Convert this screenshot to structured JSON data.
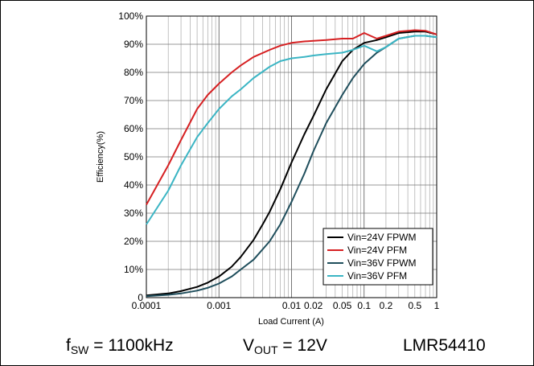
{
  "chart_data": {
    "type": "line",
    "title": "",
    "xlabel": "Load Current (A)",
    "ylabel": "Efficiency(%)",
    "x_scale": "log",
    "xlim": [
      0.0001,
      1
    ],
    "ylim": [
      0,
      100
    ],
    "grid": true,
    "legend_position": "bottom-right",
    "x_ticks": [
      {
        "value": 0.0001,
        "label": "0.0001"
      },
      {
        "value": 0.001,
        "label": "0.001"
      },
      {
        "value": 0.01,
        "label": "0.01"
      },
      {
        "value": 0.02,
        "label": "0.02"
      },
      {
        "value": 0.05,
        "label": "0.05"
      },
      {
        "value": 0.1,
        "label": "0.1"
      },
      {
        "value": 0.2,
        "label": "0.2"
      },
      {
        "value": 0.5,
        "label": "0.5"
      },
      {
        "value": 1,
        "label": "1"
      }
    ],
    "y_ticks": [
      {
        "value": 0,
        "label": "0"
      },
      {
        "value": 10,
        "label": "10%"
      },
      {
        "value": 20,
        "label": "20%"
      },
      {
        "value": 30,
        "label": "30%"
      },
      {
        "value": 40,
        "label": "40%"
      },
      {
        "value": 50,
        "label": "50%"
      },
      {
        "value": 60,
        "label": "60%"
      },
      {
        "value": 70,
        "label": "70%"
      },
      {
        "value": 80,
        "label": "80%"
      },
      {
        "value": 90,
        "label": "90%"
      },
      {
        "value": 100,
        "label": "100%"
      }
    ],
    "series": [
      {
        "name": "Vin=24V FPWM",
        "color": "#000000",
        "x": [
          0.0001,
          0.0002,
          0.0003,
          0.0005,
          0.0007,
          0.001,
          0.0015,
          0.002,
          0.003,
          0.004,
          0.005,
          0.007,
          0.01,
          0.015,
          0.02,
          0.03,
          0.05,
          0.07,
          0.1,
          0.15,
          0.2,
          0.3,
          0.5,
          0.7,
          1
        ],
        "y": [
          0.8,
          1.5,
          2.3,
          3.8,
          5.3,
          7.5,
          11,
          14.5,
          20.5,
          26,
          30.5,
          38.5,
          48,
          58,
          64.5,
          74,
          84,
          88,
          90.5,
          91.5,
          92.5,
          94,
          94.5,
          94.5,
          93.5
        ]
      },
      {
        "name": "Vin=24V PFM",
        "color": "#d62022",
        "x": [
          0.0001,
          0.0002,
          0.0003,
          0.0005,
          0.0007,
          0.001,
          0.0015,
          0.002,
          0.003,
          0.005,
          0.007,
          0.01,
          0.015,
          0.02,
          0.03,
          0.05,
          0.07,
          0.1,
          0.15,
          0.2,
          0.3,
          0.5,
          0.7,
          1
        ],
        "y": [
          33,
          47,
          56,
          67,
          72,
          76,
          80,
          82.5,
          85.5,
          88,
          89.5,
          90.5,
          91,
          91.2,
          91.5,
          92,
          92,
          94,
          92,
          93,
          94.5,
          95,
          94.8,
          93.5
        ]
      },
      {
        "name": "Vin=36V FPWM",
        "color": "#1f4e5c",
        "x": [
          0.0001,
          0.0002,
          0.0003,
          0.0005,
          0.0007,
          0.001,
          0.0015,
          0.002,
          0.003,
          0.005,
          0.007,
          0.01,
          0.015,
          0.02,
          0.03,
          0.05,
          0.07,
          0.1,
          0.15,
          0.2,
          0.3,
          0.5,
          0.7,
          1
        ],
        "y": [
          0.5,
          1,
          1.5,
          2.5,
          3.5,
          5,
          7.5,
          10,
          13.5,
          20,
          26,
          34,
          44,
          52,
          62,
          72,
          78,
          83,
          87,
          89,
          92,
          93,
          93,
          92.5
        ]
      },
      {
        "name": "Vin=36V PFM",
        "color": "#3bb5c4",
        "x": [
          0.0001,
          0.0002,
          0.0003,
          0.0005,
          0.0007,
          0.001,
          0.0015,
          0.002,
          0.003,
          0.005,
          0.007,
          0.01,
          0.015,
          0.02,
          0.03,
          0.05,
          0.07,
          0.1,
          0.15,
          0.2,
          0.3,
          0.5,
          0.7,
          1
        ],
        "y": [
          26,
          38,
          47,
          57,
          62,
          67,
          71.5,
          74,
          78,
          82,
          84,
          85,
          85.5,
          86,
          86.5,
          87,
          88,
          89.5,
          87.5,
          89,
          92,
          93,
          93,
          92.5
        ]
      }
    ]
  },
  "caption": {
    "fsw_prefix": "f",
    "fsw_sub": "SW",
    "fsw_value": " = 1100kHz",
    "vout_prefix": "V",
    "vout_sub": "OUT",
    "vout_value": " = 12V",
    "part_number": "LMR54410"
  }
}
